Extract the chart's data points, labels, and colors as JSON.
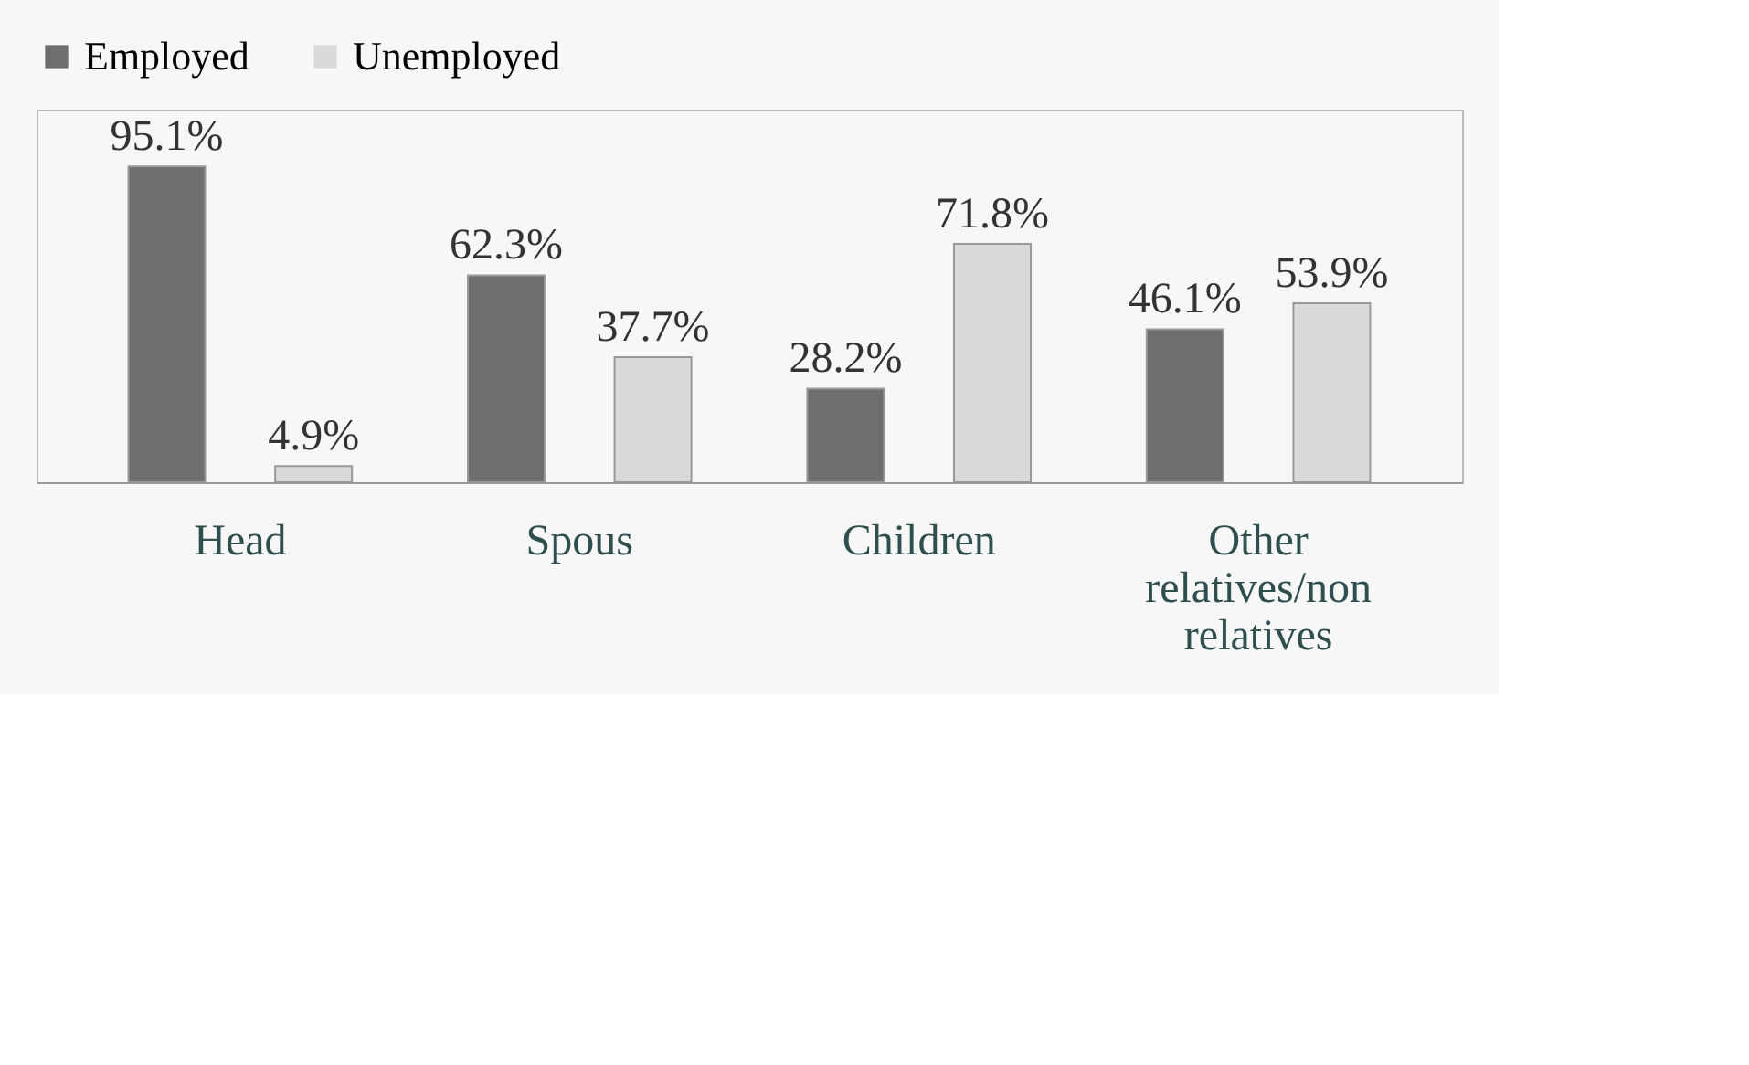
{
  "chart_data": {
    "type": "bar",
    "categories": [
      "Head",
      "Spous",
      "Children",
      "Other relatives/non relatives"
    ],
    "series": [
      {
        "name": "Employed",
        "color": "#6e6e6e",
        "values": [
          95.1,
          62.3,
          28.2,
          46.1
        ],
        "value_labels": [
          "95.1%",
          "62.3%",
          "28.2%",
          "46.1%"
        ]
      },
      {
        "name": "Unemployed",
        "color": "#dadada",
        "values": [
          4.9,
          37.7,
          71.8,
          53.9
        ],
        "value_labels": [
          "4.9%",
          "37.7%",
          "71.8%",
          "53.9%"
        ]
      }
    ],
    "legend": "top",
    "grid": false
  }
}
